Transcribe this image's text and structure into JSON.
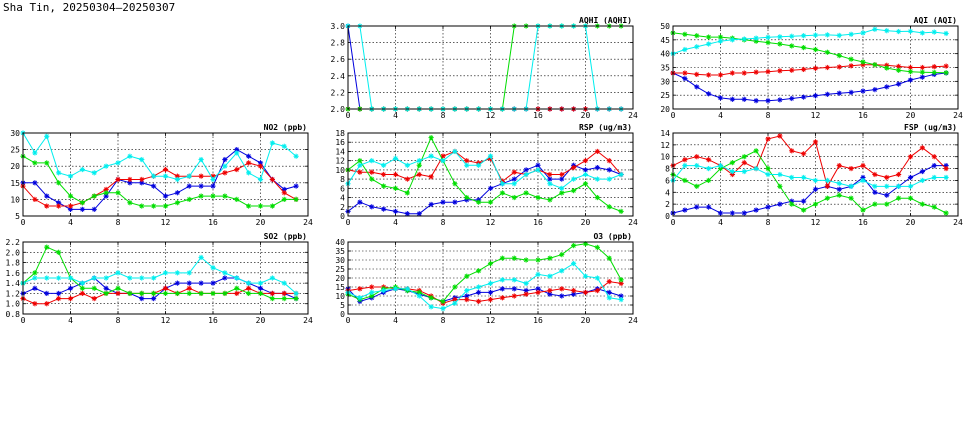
{
  "page": {
    "title": "Sha Tin, 20250304–20250307"
  },
  "colors": {
    "day1": "#0000dd",
    "day2": "#ee0000",
    "day3": "#00dd00",
    "day4": "#00eeee",
    "grid": "#000000"
  },
  "chart_data": [
    {
      "id": "aqhi",
      "type": "line",
      "title": "AQHI (AQHI)",
      "xlim": [
        0,
        24
      ],
      "xticks": [
        0,
        4,
        8,
        12,
        16,
        20,
        24
      ],
      "ylim": [
        2.0,
        3.0
      ],
      "yticks": [
        "2.0",
        "2.2",
        "2.4",
        "2.6",
        "2.8",
        "3.0"
      ],
      "ytick_values": [
        2.0,
        2.2,
        2.4,
        2.6,
        2.8,
        3.0
      ],
      "grid": true,
      "series": [
        {
          "color": "#0000dd",
          "values": [
            3,
            2,
            2,
            2,
            2,
            2,
            2,
            2,
            2,
            2,
            2,
            2,
            2,
            2,
            2,
            2,
            2,
            2,
            2,
            2,
            2,
            2,
            2,
            2
          ]
        },
        {
          "color": "#ee0000",
          "values": [
            2,
            2,
            2,
            2,
            2,
            2,
            2,
            2,
            2,
            2,
            2,
            2,
            2,
            2,
            2,
            2,
            2,
            2,
            2,
            2,
            2,
            2,
            2,
            2
          ]
        },
        {
          "color": "#00dd00",
          "values": [
            2,
            2,
            2,
            2,
            2,
            2,
            2,
            2,
            2,
            2,
            2,
            2,
            2,
            2,
            3,
            3,
            3,
            3,
            3,
            3,
            3,
            3,
            3,
            3
          ]
        },
        {
          "color": "#00eeee",
          "values": [
            3,
            3,
            2,
            2,
            2,
            2,
            2,
            2,
            2,
            2,
            2,
            2,
            2,
            2,
            2,
            2,
            3,
            3,
            3,
            3,
            3,
            2,
            2,
            2
          ]
        }
      ]
    },
    {
      "id": "aqi",
      "type": "line",
      "title": "AQI (AQI)",
      "xlim": [
        0,
        24
      ],
      "xticks": [
        0,
        4,
        8,
        12,
        16,
        20,
        24
      ],
      "ylim": [
        20,
        50
      ],
      "yticks": [
        "20",
        "25",
        "30",
        "35",
        "40",
        "45",
        "50"
      ],
      "ytick_values": [
        20,
        25,
        30,
        35,
        40,
        45,
        50
      ],
      "grid": true,
      "series": [
        {
          "color": "#0000dd",
          "values": [
            33,
            31,
            28,
            25.5,
            24,
            23.5,
            23.5,
            23,
            23,
            23.3,
            23.8,
            24.3,
            24.8,
            25.3,
            25.7,
            26,
            26.5,
            27,
            28,
            29,
            30.5,
            31.5,
            32.5,
            33
          ]
        },
        {
          "color": "#ee0000",
          "values": [
            33,
            33,
            32.5,
            32.3,
            32.3,
            33,
            33,
            33.3,
            33.5,
            33.8,
            34,
            34.3,
            34.7,
            35,
            35.2,
            35.6,
            36,
            36,
            35.8,
            35.4,
            35,
            35,
            35.3,
            35.5
          ]
        },
        {
          "color": "#00dd00",
          "values": [
            47.5,
            47,
            46.5,
            46,
            46,
            45.6,
            45,
            44.5,
            44,
            43.5,
            42.8,
            42.2,
            41.5,
            40.5,
            39.3,
            38,
            37,
            36,
            34.8,
            34,
            33.5,
            33.3,
            33.2,
            33.1
          ]
        },
        {
          "color": "#00eeee",
          "values": [
            40,
            41.5,
            42.5,
            43.5,
            44.5,
            45,
            45.3,
            45.6,
            45.9,
            46.1,
            46.3,
            46.5,
            46.7,
            46.8,
            46.6,
            47,
            47.5,
            48.8,
            48.3,
            48,
            48.1,
            47.5,
            47.8,
            47.3
          ]
        }
      ]
    },
    {
      "id": "no2",
      "type": "line",
      "title": "NO2 (ppb)",
      "xlim": [
        0,
        24
      ],
      "xticks": [
        0,
        4,
        8,
        12,
        16,
        20,
        24
      ],
      "ylim": [
        5,
        30
      ],
      "yticks": [
        "5",
        "10",
        "15",
        "20",
        "25",
        "30"
      ],
      "ytick_values": [
        5,
        10,
        15,
        20,
        25,
        30
      ],
      "grid": true,
      "series": [
        {
          "color": "#0000dd",
          "values": [
            15,
            15,
            11,
            9,
            7,
            7,
            7,
            11,
            16,
            15,
            15,
            14,
            11,
            12,
            14,
            14,
            14,
            22,
            25,
            23,
            21,
            16,
            13,
            14
          ]
        },
        {
          "color": "#ee0000",
          "values": [
            14,
            10,
            8,
            8,
            8,
            9,
            11,
            13,
            16,
            16,
            16,
            17,
            19,
            17,
            17,
            17,
            17,
            18,
            19,
            21,
            20,
            16,
            12,
            10
          ]
        },
        {
          "color": "#00dd00",
          "values": [
            23,
            21,
            21,
            15,
            11,
            9,
            11,
            12,
            12,
            9,
            8,
            8,
            8,
            9,
            10,
            11,
            11,
            11,
            10,
            8,
            8,
            8,
            10,
            10
          ]
        },
        {
          "color": "#00eeee",
          "values": [
            30,
            24,
            29,
            18,
            17,
            19,
            18,
            20,
            21,
            23,
            22,
            17,
            17,
            16,
            17,
            22,
            16,
            20,
            24,
            18,
            16,
            27,
            26,
            23
          ]
        }
      ]
    },
    {
      "id": "rsp",
      "type": "line",
      "title": "RSP (ug/m3)",
      "xlim": [
        0,
        24
      ],
      "xticks": [
        0,
        4,
        8,
        12,
        16,
        20,
        24
      ],
      "ylim": [
        0,
        18
      ],
      "yticks": [
        "0",
        "2",
        "4",
        "6",
        "8",
        "10",
        "12",
        "14",
        "16",
        "18"
      ],
      "ytick_values": [
        0,
        2,
        4,
        6,
        8,
        10,
        12,
        14,
        16,
        18
      ],
      "grid": true,
      "series": [
        {
          "color": "#0000dd",
          "values": [
            1,
            3,
            2,
            1.5,
            1,
            0.5,
            0.5,
            2.5,
            3,
            3,
            3.5,
            3.5,
            6,
            7,
            8,
            10,
            11,
            8,
            8,
            11,
            10,
            10.5,
            10,
            9
          ]
        },
        {
          "color": "#ee0000",
          "values": [
            10,
            9.5,
            9.5,
            9,
            9,
            8,
            9,
            8.5,
            13,
            14,
            12,
            11.5,
            12.5,
            7.5,
            9.5,
            9,
            10,
            9,
            9,
            10.5,
            12,
            14,
            12,
            9
          ]
        },
        {
          "color": "#00dd00",
          "values": [
            10,
            12,
            8,
            6.5,
            6,
            5,
            11,
            17,
            12,
            7,
            4,
            3,
            3,
            5,
            4,
            5,
            4,
            3.5,
            5,
            5.5,
            7,
            4,
            2,
            1
          ]
        },
        {
          "color": "#00eeee",
          "values": [
            7,
            11,
            12,
            11,
            12.5,
            11,
            12,
            13,
            12,
            14,
            11,
            11,
            13,
            7,
            7,
            9,
            10,
            7,
            6,
            8,
            9,
            8,
            8,
            9
          ]
        }
      ]
    },
    {
      "id": "fsp",
      "type": "line",
      "title": "FSP (ug/m3)",
      "xlim": [
        0,
        24
      ],
      "xticks": [
        0,
        4,
        8,
        12,
        16,
        20,
        24
      ],
      "ylim": [
        0,
        14
      ],
      "yticks": [
        "0",
        "2",
        "4",
        "6",
        "8",
        "10",
        "12",
        "14"
      ],
      "ytick_values": [
        0,
        2,
        4,
        6,
        8,
        10,
        12,
        14
      ],
      "grid": true,
      "series": [
        {
          "color": "#0000dd",
          "values": [
            0.5,
            1,
            1.5,
            1.5,
            0.5,
            0.5,
            0.5,
            1,
            1.5,
            2,
            2.5,
            2.5,
            4.5,
            5,
            4.5,
            5,
            6.5,
            4,
            3.5,
            5,
            6.5,
            7.5,
            8.5,
            8.5
          ]
        },
        {
          "color": "#ee0000",
          "values": [
            8.5,
            9.5,
            10,
            9.5,
            8.5,
            7,
            9,
            8,
            13,
            13.5,
            11,
            10.5,
            12.5,
            5,
            8.5,
            8,
            8.5,
            7,
            6.5,
            7,
            10,
            11.5,
            10,
            8
          ]
        },
        {
          "color": "#00dd00",
          "values": [
            7,
            6,
            5,
            6,
            8,
            9,
            10,
            11,
            8,
            5,
            2,
            1,
            2,
            3,
            3.5,
            3,
            1,
            2,
            2,
            3,
            3,
            2,
            1.5,
            0.5
          ]
        },
        {
          "color": "#00eeee",
          "values": [
            6,
            8.5,
            8.5,
            8,
            8.5,
            7.5,
            7.5,
            8,
            7,
            7,
            6.5,
            6.5,
            6,
            6,
            5.5,
            5,
            6,
            5,
            5,
            5,
            5,
            6,
            6.5,
            6.5
          ]
        }
      ]
    },
    {
      "id": "so2",
      "type": "line",
      "title": "SO2 (ppb)",
      "xlim": [
        0,
        24
      ],
      "xticks": [
        0,
        4,
        8,
        12,
        16,
        20,
        24
      ],
      "ylim": [
        0.8,
        2.2
      ],
      "yticks": [
        "0.8",
        "1.0",
        "1.2",
        "1.4",
        "1.6",
        "1.8",
        "2.0",
        "2.2"
      ],
      "ytick_values": [
        0.8,
        1.0,
        1.2,
        1.4,
        1.6,
        1.8,
        2.0,
        2.2
      ],
      "grid": true,
      "series": [
        {
          "color": "#0000dd",
          "values": [
            1.2,
            1.3,
            1.2,
            1.2,
            1.3,
            1.4,
            1.5,
            1.3,
            1.2,
            1.2,
            1.1,
            1.1,
            1.3,
            1.4,
            1.4,
            1.4,
            1.4,
            1.5,
            1.5,
            1.4,
            1.3,
            1.2,
            1.2,
            1.1
          ]
        },
        {
          "color": "#ee0000",
          "values": [
            1.1,
            1.0,
            1.0,
            1.1,
            1.1,
            1.2,
            1.1,
            1.2,
            1.2,
            1.2,
            1.2,
            1.2,
            1.3,
            1.2,
            1.3,
            1.2,
            1.2,
            1.2,
            1.2,
            1.3,
            1.2,
            1.2,
            1.2,
            1.2
          ]
        },
        {
          "color": "#00dd00",
          "values": [
            1.4,
            1.6,
            2.1,
            2.0,
            1.5,
            1.3,
            1.3,
            1.2,
            1.3,
            1.2,
            1.2,
            1.2,
            1.2,
            1.2,
            1.2,
            1.2,
            1.2,
            1.2,
            1.3,
            1.2,
            1.2,
            1.1,
            1.1,
            1.1
          ]
        },
        {
          "color": "#00eeee",
          "values": [
            1.4,
            1.5,
            1.5,
            1.5,
            1.5,
            1.4,
            1.5,
            1.5,
            1.6,
            1.5,
            1.5,
            1.5,
            1.6,
            1.6,
            1.6,
            1.9,
            1.7,
            1.6,
            1.5,
            1.4,
            1.4,
            1.5,
            1.4,
            1.2
          ]
        }
      ]
    },
    {
      "id": "o3",
      "type": "line",
      "title": "O3 (ppb)",
      "xlim": [
        0,
        24
      ],
      "xticks": [
        0,
        4,
        8,
        12,
        16,
        20,
        24
      ],
      "ylim": [
        0,
        40
      ],
      "yticks": [
        "0",
        "5",
        "10",
        "15",
        "20",
        "25",
        "30",
        "35",
        "40"
      ],
      "ytick_values": [
        0,
        5,
        10,
        15,
        20,
        25,
        30,
        35,
        40
      ],
      "grid": true,
      "series": [
        {
          "color": "#0000dd",
          "values": [
            14,
            7,
            9,
            12,
            14,
            13,
            11,
            9,
            7,
            9,
            10,
            12,
            12,
            14,
            14,
            13,
            14,
            11,
            10,
            11,
            12,
            14,
            12,
            10
          ]
        },
        {
          "color": "#ee0000",
          "values": [
            13,
            14,
            15,
            15,
            14,
            14,
            13,
            10,
            6,
            8,
            8,
            7,
            8,
            9,
            10,
            11,
            12,
            13,
            14,
            13,
            12,
            13,
            18,
            17
          ]
        },
        {
          "color": "#00dd00",
          "values": [
            11,
            8,
            10,
            14,
            15,
            13,
            12,
            9,
            7,
            15,
            21,
            24,
            28,
            31,
            31,
            30,
            30,
            31,
            33,
            38,
            39,
            37,
            31,
            19
          ]
        },
        {
          "color": "#00eeee",
          "values": [
            12,
            9,
            12,
            13,
            14,
            14,
            10,
            4,
            3,
            6,
            13,
            15,
            17,
            19,
            19,
            17,
            22,
            21,
            24,
            28,
            21,
            20,
            9,
            8
          ]
        }
      ]
    }
  ]
}
